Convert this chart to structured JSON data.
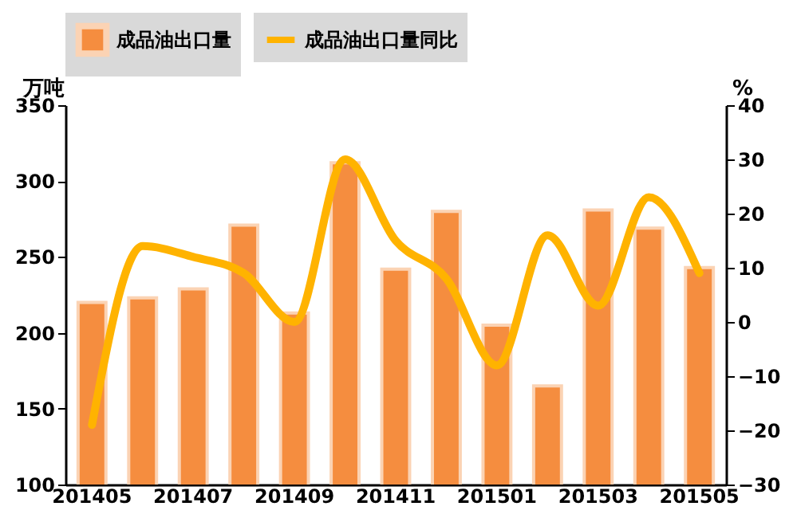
{
  "chart_data": {
    "type": "bar",
    "categories": [
      "201405",
      null,
      "201407",
      null,
      "201409",
      null,
      "201411",
      null,
      "201501",
      null,
      "201503",
      null,
      "201505"
    ],
    "series": [
      {
        "name": "成品油出口量",
        "color": "#f58d3f",
        "values": [
          220,
          223,
          229,
          271,
          213,
          312,
          242,
          280,
          205,
          165,
          281,
          269,
          243
        ]
      },
      {
        "name": "成品油出口量同比",
        "type": "line",
        "axis": "y2",
        "color": "#ffb300",
        "values": [
          -19,
          14,
          12,
          9,
          0,
          30,
          15,
          8,
          -8,
          16,
          3,
          23,
          9
        ]
      }
    ],
    "ylabel": "万吨",
    "y2label": "%",
    "ylim": [
      100,
      350
    ],
    "yticks": [
      100,
      150,
      200,
      250,
      300,
      350
    ],
    "y2lim": [
      -30,
      40
    ],
    "y2ticks": [
      -30,
      -20,
      -10,
      0,
      10,
      20,
      30,
      40
    ],
    "grid": false,
    "legend": "top"
  }
}
